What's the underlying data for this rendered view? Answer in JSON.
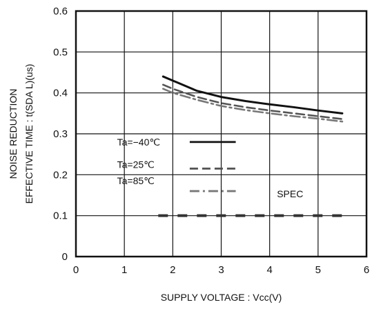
{
  "chart_data": {
    "type": "line",
    "xlabel": "SUPPLY VOLTAGE : Vcc(V)",
    "ylabel_line1": "NOISE REDUCTION",
    "ylabel_line2": "EFFECTIVE TIME : t(SDA L)(us)",
    "xlim": [
      0,
      6
    ],
    "ylim": [
      0,
      0.6
    ],
    "x_ticks": [
      "0",
      "1",
      "2",
      "3",
      "4",
      "5",
      "6"
    ],
    "y_ticks": [
      "0",
      "0.1",
      "0.2",
      "0.3",
      "0.4",
      "0.5",
      "0.6"
    ],
    "grid": true,
    "series": [
      {
        "name": "Ta=−40℃",
        "style": "solid",
        "color": "#111111",
        "x": [
          1.8,
          2.0,
          2.5,
          3.0,
          3.5,
          4.0,
          4.5,
          5.0,
          5.5
        ],
        "y": [
          0.44,
          0.43,
          0.405,
          0.39,
          0.38,
          0.372,
          0.365,
          0.357,
          0.35
        ]
      },
      {
        "name": "Ta=25℃",
        "style": "dashed",
        "color": "#555555",
        "x": [
          1.8,
          2.0,
          2.5,
          3.0,
          3.5,
          4.0,
          4.5,
          5.0,
          5.5
        ],
        "y": [
          0.42,
          0.41,
          0.39,
          0.375,
          0.365,
          0.357,
          0.35,
          0.343,
          0.336
        ]
      },
      {
        "name": "Ta=85℃",
        "style": "dashdot",
        "color": "#777777",
        "x": [
          1.8,
          2.0,
          2.5,
          3.0,
          3.5,
          4.0,
          4.5,
          5.0,
          5.5
        ],
        "y": [
          0.41,
          0.4,
          0.383,
          0.368,
          0.358,
          0.35,
          0.343,
          0.337,
          0.33
        ]
      }
    ],
    "spec": {
      "label": "SPEC",
      "y": 0.1,
      "x_range": [
        1.7,
        5.5
      ],
      "style": "dashed-thick",
      "color": "#333333"
    }
  }
}
